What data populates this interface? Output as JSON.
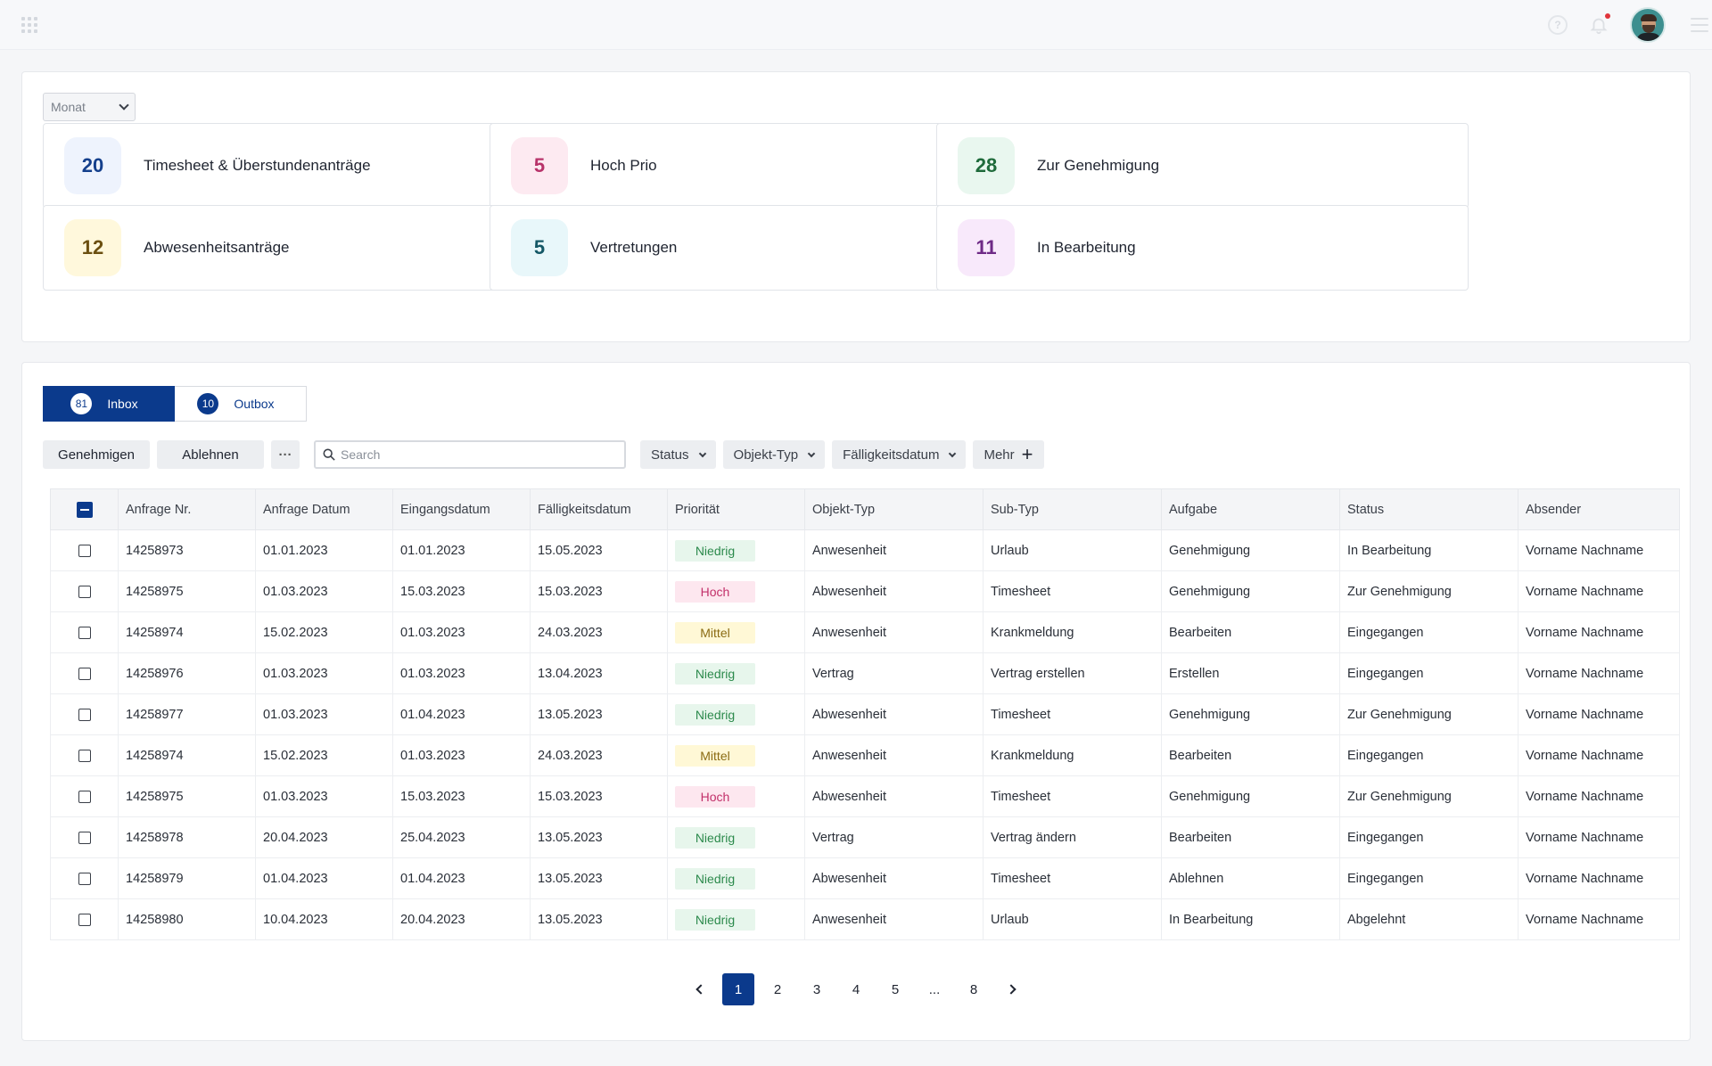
{
  "header": {
    "icons": [
      "apps-grid-icon",
      "help-icon",
      "bell-icon",
      "avatar",
      "menu-icon"
    ],
    "help_glyph": "?"
  },
  "summary": {
    "period_select": "Monat",
    "kpis": [
      {
        "value": "20",
        "label": "Timesheet & Überstundenanträge",
        "bg": "#eef3fd",
        "fg": "#143f8c"
      },
      {
        "value": "5",
        "label": "Hoch Prio",
        "bg": "#fdeaf1",
        "fg": "#b8336a"
      },
      {
        "value": "28",
        "label": "Zur Genehmigung",
        "bg": "#e9f7ef",
        "fg": "#1f6b3b"
      },
      {
        "value": "12",
        "label": "Abwesenheitsanträge",
        "bg": "#fff8dc",
        "fg": "#6b4f10"
      },
      {
        "value": "5",
        "label": "Vertretungen",
        "bg": "#e8f7fa",
        "fg": "#145866"
      },
      {
        "value": "11",
        "label": "In Bearbeitung",
        "bg": "#f8e9fb",
        "fg": "#6e2a86"
      }
    ]
  },
  "tabs": [
    {
      "count": "81",
      "label": "Inbox",
      "active": true
    },
    {
      "count": "10",
      "label": "Outbox",
      "active": false
    }
  ],
  "toolbar": {
    "approve_label": "Genehmigen",
    "reject_label": "Ablehnen",
    "more_dots": "···",
    "search_placeholder": "Search",
    "filters": [
      "Status",
      "Objekt-Typ",
      "Fälligkeitsdatum"
    ],
    "more_label": "Mehr",
    "plus": "+"
  },
  "table": {
    "columns": [
      "Anfrage Nr.",
      "Anfrage Datum",
      "Eingangsdatum",
      "Fälligkeitsdatum",
      "Priorität",
      "Objekt-Typ",
      "Sub-Typ",
      "Aufgabe",
      "Status",
      "Absender"
    ],
    "rows": [
      [
        "14258973",
        "01.01.2023",
        "01.01.2023",
        "15.05.2023",
        "Niedrig",
        "Anwesenheit",
        "Urlaub",
        "Genehmigung",
        "In Bearbeitung",
        "Vorname Nachname"
      ],
      [
        "14258975",
        "01.03.2023",
        "15.03.2023",
        "15.03.2023",
        "Hoch",
        "Abwesenheit",
        "Timesheet",
        "Genehmigung",
        "Zur Genehmigung",
        "Vorname Nachname"
      ],
      [
        "14258974",
        "15.02.2023",
        "01.03.2023",
        "24.03.2023",
        "Mittel",
        "Anwesenheit",
        "Krankmeldung",
        "Bearbeiten",
        "Eingegangen",
        "Vorname Nachname"
      ],
      [
        "14258976",
        "01.03.2023",
        "01.03.2023",
        "13.04.2023",
        "Niedrig",
        "Vertrag",
        "Vertrag erstellen",
        "Erstellen",
        "Eingegangen",
        "Vorname Nachname"
      ],
      [
        "14258977",
        "01.03.2023",
        "01.04.2023",
        "13.05.2023",
        "Niedrig",
        "Abwesenheit",
        "Timesheet",
        "Genehmigung",
        "Zur Genehmigung",
        "Vorname Nachname"
      ],
      [
        "14258974",
        "15.02.2023",
        "01.03.2023",
        "24.03.2023",
        "Mittel",
        "Anwesenheit",
        "Krankmeldung",
        "Bearbeiten",
        "Eingegangen",
        "Vorname Nachname"
      ],
      [
        "14258975",
        "01.03.2023",
        "15.03.2023",
        "15.03.2023",
        "Hoch",
        "Abwesenheit",
        "Timesheet",
        "Genehmigung",
        "Zur Genehmigung",
        "Vorname Nachname"
      ],
      [
        "14258978",
        "20.04.2023",
        "25.04.2023",
        "13.05.2023",
        "Niedrig",
        "Vertrag",
        "Vertrag ändern",
        "Bearbeiten",
        "Eingegangen",
        "Vorname Nachname"
      ],
      [
        "14258979",
        "01.04.2023",
        "01.04.2023",
        "13.05.2023",
        "Niedrig",
        "Abwesenheit",
        "Timesheet",
        "Ablehnen",
        "Eingegangen",
        "Vorname Nachname"
      ],
      [
        "14258980",
        "10.04.2023",
        "20.04.2023",
        "13.05.2023",
        "Niedrig",
        "Anwesenheit",
        "Urlaub",
        "In Bearbeitung",
        "Abgelehnt",
        "Vorname Nachname"
      ]
    ]
  },
  "pagination": {
    "pages": [
      "1",
      "2",
      "3",
      "4",
      "5",
      "...",
      "8"
    ],
    "current": "1"
  },
  "colors": {
    "primary": "#0b3a8c",
    "prio_niedrig": "#2c8a4c",
    "prio_hoch": "#c2306a",
    "prio_mittel": "#8a6b12"
  }
}
